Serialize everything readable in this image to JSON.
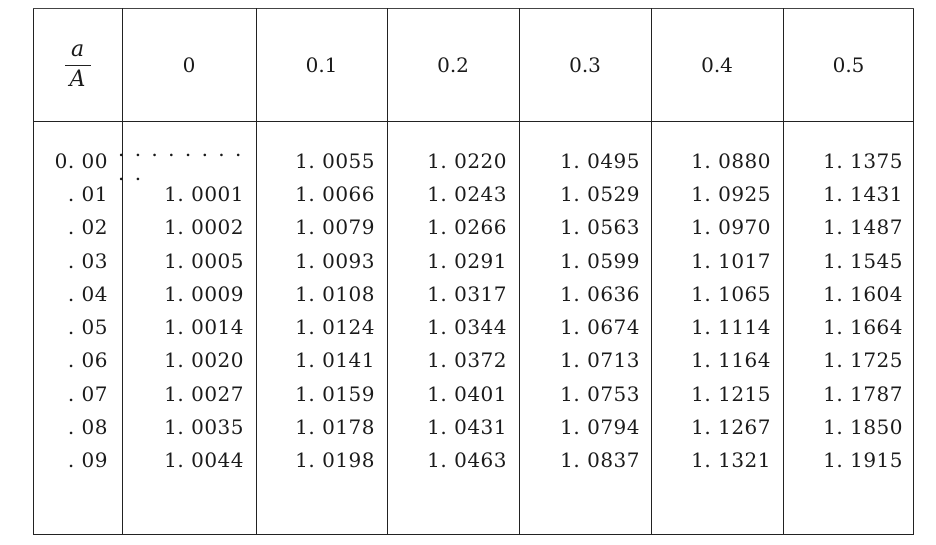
{
  "table": {
    "header": {
      "ratio_label": {
        "numerator": "a",
        "denominator": "A"
      },
      "columns": [
        "0",
        "0.1",
        "0.2",
        "0.3",
        "0.4",
        "0.5"
      ]
    },
    "rows": [
      {
        "label": "0. 00",
        "values": [
          ". . . . . . . . . .",
          "1. 0055",
          "1. 0220",
          "1. 0495",
          "1. 0880",
          "1. 1375"
        ]
      },
      {
        "label": ". 01",
        "values": [
          "1. 0001",
          "1. 0066",
          "1. 0243",
          "1. 0529",
          "1. 0925",
          "1. 1431"
        ]
      },
      {
        "label": ". 02",
        "values": [
          "1. 0002",
          "1. 0079",
          "1. 0266",
          "1. 0563",
          "1. 0970",
          "1. 1487"
        ]
      },
      {
        "label": ". 03",
        "values": [
          "1. 0005",
          "1. 0093",
          "1. 0291",
          "1. 0599",
          "1. 1017",
          "1. 1545"
        ]
      },
      {
        "label": ". 04",
        "values": [
          "1. 0009",
          "1. 0108",
          "1. 0317",
          "1. 0636",
          "1. 1065",
          "1. 1604"
        ]
      },
      {
        "label": ". 05",
        "values": [
          "1. 0014",
          "1. 0124",
          "1. 0344",
          "1. 0674",
          "1. 1114",
          "1. 1664"
        ]
      },
      {
        "label": ". 06",
        "values": [
          "1. 0020",
          "1. 0141",
          "1. 0372",
          "1. 0713",
          "1. 1164",
          "1. 1725"
        ]
      },
      {
        "label": ". 07",
        "values": [
          "1. 0027",
          "1. 0159",
          "1. 0401",
          "1. 0753",
          "1. 1215",
          "1. 1787"
        ]
      },
      {
        "label": ". 08",
        "values": [
          "1. 0035",
          "1. 0178",
          "1. 0431",
          "1. 0794",
          "1. 1267",
          "1. 1850"
        ]
      },
      {
        "label": ". 09",
        "values": [
          "1. 0044",
          "1. 0198",
          "1. 0463",
          "1. 0837",
          "1. 1321",
          "1. 1915"
        ]
      }
    ]
  }
}
